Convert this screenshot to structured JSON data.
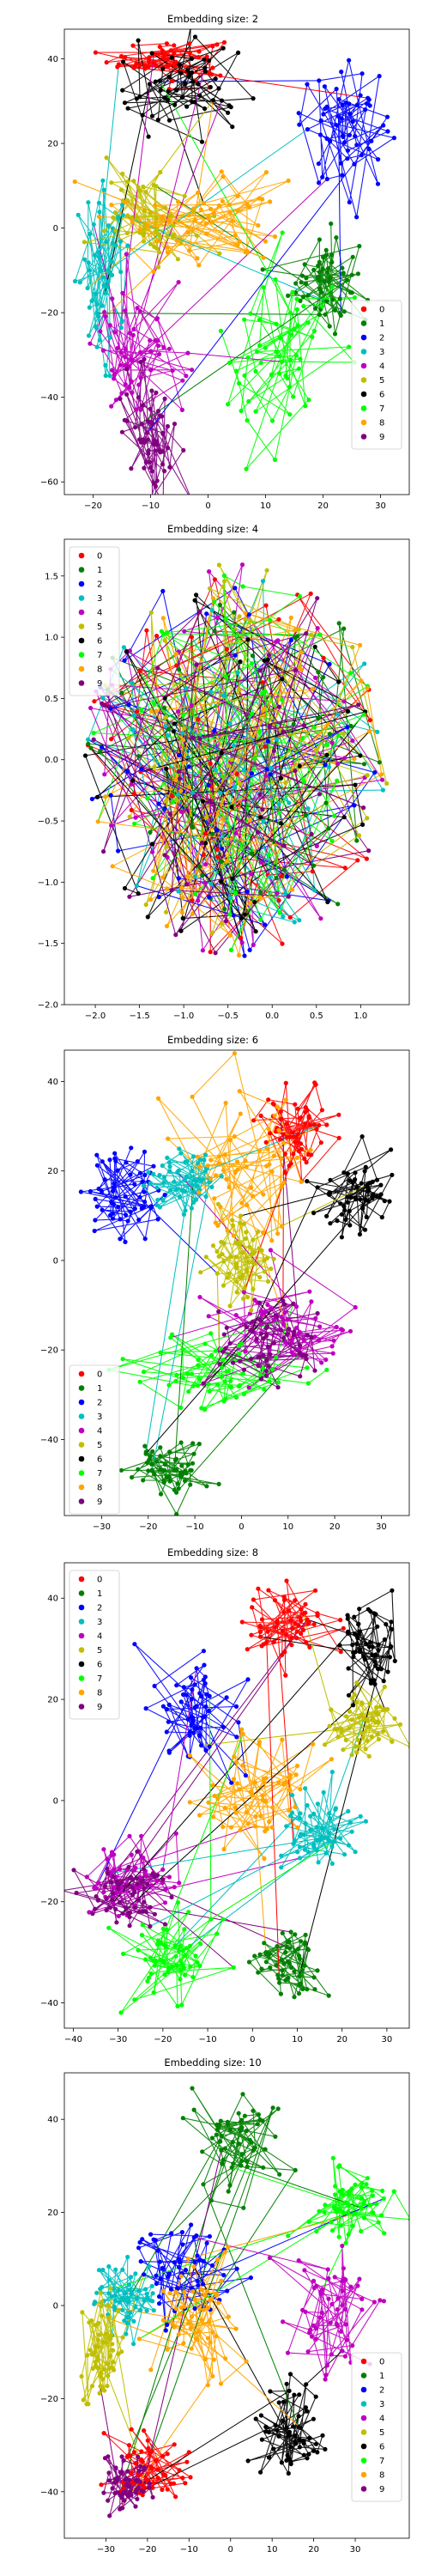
{
  "colors": {
    "0": "#ff0000",
    "1": "#008000",
    "2": "#0000ff",
    "3": "#00bfbf",
    "4": "#bf00bf",
    "5": "#bfbf00",
    "6": "#000000",
    "7": "#00ff00",
    "8": "#ffa500",
    "9": "#800080"
  },
  "legend_labels": [
    "0",
    "1",
    "2",
    "3",
    "4",
    "5",
    "6",
    "7",
    "8",
    "9"
  ],
  "chart_data": [
    {
      "type": "scatter",
      "title": "Embedding size: 2",
      "xlim": [
        -25,
        35
      ],
      "ylim": [
        -63,
        47
      ],
      "xticks": [
        -20,
        -10,
        0,
        10,
        20,
        30
      ],
      "yticks": [
        -60,
        -40,
        -20,
        0,
        20,
        40
      ],
      "legend": "lower-right",
      "clusters": [
        {
          "name": "0",
          "cx": -7,
          "cy": 40,
          "sx": 5,
          "sy": 2.5
        },
        {
          "name": "1",
          "cx": 20,
          "cy": -12,
          "sx": 3,
          "sy": 6
        },
        {
          "name": "2",
          "cx": 24,
          "cy": 24,
          "sx": 4,
          "sy": 7
        },
        {
          "name": "3",
          "cx": -18,
          "cy": -12,
          "sx": 2.5,
          "sy": 10
        },
        {
          "name": "4",
          "cx": -12,
          "cy": -30,
          "sx": 4,
          "sy": 8
        },
        {
          "name": "5",
          "cx": -10,
          "cy": 3,
          "sx": 4,
          "sy": 5
        },
        {
          "name": "6",
          "cx": -5,
          "cy": 32,
          "sx": 6,
          "sy": 6
        },
        {
          "name": "7",
          "cx": 12,
          "cy": -30,
          "sx": 5,
          "sy": 12
        },
        {
          "name": "8",
          "cx": 0,
          "cy": 3,
          "sx": 8,
          "sy": 6
        },
        {
          "name": "9",
          "cx": -10,
          "cy": -48,
          "sx": 2.5,
          "sy": 8
        }
      ]
    },
    {
      "type": "scatter",
      "title": "Embedding size: 4",
      "xlim": [
        -2.35,
        1.55
      ],
      "ylim": [
        -2.0,
        1.8
      ],
      "xticks": [
        -2.0,
        -1.5,
        -1.0,
        -0.5,
        0.0,
        0.5,
        1.0
      ],
      "yticks": [
        -2.0,
        -1.5,
        -1.0,
        -0.5,
        0.0,
        0.5,
        1.0,
        1.5
      ],
      "legend": "upper-left",
      "clusters": [
        {
          "name": "0",
          "cx": -0.4,
          "cy": 0.0,
          "sx": 0.9,
          "sy": 0.85,
          "uniform": true
        },
        {
          "name": "1",
          "cx": -0.4,
          "cy": 0.0,
          "sx": 0.9,
          "sy": 0.85,
          "uniform": true
        },
        {
          "name": "2",
          "cx": -0.4,
          "cy": 0.0,
          "sx": 0.9,
          "sy": 0.85,
          "uniform": true
        },
        {
          "name": "3",
          "cx": -0.4,
          "cy": 0.0,
          "sx": 0.9,
          "sy": 0.85,
          "uniform": true
        },
        {
          "name": "4",
          "cx": -0.4,
          "cy": 0.0,
          "sx": 0.9,
          "sy": 0.85,
          "uniform": true
        },
        {
          "name": "5",
          "cx": -0.4,
          "cy": 0.0,
          "sx": 0.9,
          "sy": 0.85,
          "uniform": true
        },
        {
          "name": "6",
          "cx": -0.4,
          "cy": 0.0,
          "sx": 0.9,
          "sy": 0.85,
          "uniform": true
        },
        {
          "name": "7",
          "cx": -0.4,
          "cy": 0.0,
          "sx": 0.9,
          "sy": 0.85,
          "uniform": true
        },
        {
          "name": "8",
          "cx": -0.4,
          "cy": 0.0,
          "sx": 0.9,
          "sy": 0.85,
          "uniform": true
        },
        {
          "name": "9",
          "cx": -0.4,
          "cy": 0.0,
          "sx": 0.9,
          "sy": 0.85,
          "uniform": true
        }
      ]
    },
    {
      "type": "scatter",
      "title": "Embedding size: 6",
      "xlim": [
        -38,
        36
      ],
      "ylim": [
        -57,
        47
      ],
      "xticks": [
        -30,
        -20,
        -10,
        0,
        10,
        20,
        30
      ],
      "yticks": [
        -40,
        -20,
        0,
        20,
        40
      ],
      "legend": "lower-left",
      "clusters": [
        {
          "name": "0",
          "cx": 12,
          "cy": 30,
          "sx": 4,
          "sy": 5
        },
        {
          "name": "1",
          "cx": -15,
          "cy": -47,
          "sx": 4,
          "sy": 3
        },
        {
          "name": "2",
          "cx": -25,
          "cy": 15,
          "sx": 5,
          "sy": 5
        },
        {
          "name": "3",
          "cx": -12,
          "cy": 18,
          "sx": 4,
          "sy": 4
        },
        {
          "name": "4",
          "cx": 10,
          "cy": -15,
          "sx": 7,
          "sy": 5
        },
        {
          "name": "5",
          "cx": 0,
          "cy": 0,
          "sx": 4,
          "sy": 5
        },
        {
          "name": "6",
          "cx": 25,
          "cy": 15,
          "sx": 4,
          "sy": 4
        },
        {
          "name": "7",
          "cx": -5,
          "cy": -25,
          "sx": 8,
          "sy": 4
        },
        {
          "name": "8",
          "cx": 0,
          "cy": 20,
          "sx": 7,
          "sy": 8
        },
        {
          "name": "9",
          "cx": 5,
          "cy": -18,
          "sx": 6,
          "sy": 5
        }
      ]
    },
    {
      "type": "scatter",
      "title": "Embedding size: 8",
      "xlim": [
        -42,
        35
      ],
      "ylim": [
        -45,
        47
      ],
      "xticks": [
        -40,
        -30,
        -20,
        -10,
        0,
        10,
        20,
        30
      ],
      "yticks": [
        -40,
        -20,
        0,
        20,
        40
      ],
      "legend": "upper-left",
      "clusters": [
        {
          "name": "0",
          "cx": 8,
          "cy": 35,
          "sx": 5,
          "sy": 4
        },
        {
          "name": "1",
          "cx": 8,
          "cy": -33,
          "sx": 4,
          "sy": 4
        },
        {
          "name": "2",
          "cx": -12,
          "cy": 18,
          "sx": 5,
          "sy": 6
        },
        {
          "name": "3",
          "cx": 15,
          "cy": -5,
          "sx": 5,
          "sy": 4
        },
        {
          "name": "4",
          "cx": -28,
          "cy": -15,
          "sx": 6,
          "sy": 4
        },
        {
          "name": "5",
          "cx": 25,
          "cy": 15,
          "sx": 4,
          "sy": 4
        },
        {
          "name": "6",
          "cx": 25,
          "cy": 30,
          "sx": 3,
          "sy": 5
        },
        {
          "name": "7",
          "cx": -18,
          "cy": -30,
          "sx": 6,
          "sy": 5
        },
        {
          "name": "8",
          "cx": 0,
          "cy": 0,
          "sx": 7,
          "sy": 6
        },
        {
          "name": "9",
          "cx": -28,
          "cy": -18,
          "sx": 5,
          "sy": 3
        }
      ]
    },
    {
      "type": "scatter",
      "title": "Embedding size: 10",
      "xlim": [
        -40,
        43
      ],
      "ylim": [
        -50,
        50
      ],
      "xticks": [
        -30,
        -20,
        -10,
        0,
        10,
        20,
        30
      ],
      "yticks": [
        -40,
        -20,
        0,
        20,
        40
      ],
      "legend": "lower-right",
      "clusters": [
        {
          "name": "0",
          "cx": -20,
          "cy": -35,
          "sx": 5,
          "sy": 4
        },
        {
          "name": "1",
          "cx": 2,
          "cy": 35,
          "sx": 5,
          "sy": 5
        },
        {
          "name": "2",
          "cx": -12,
          "cy": 8,
          "sx": 5,
          "sy": 5
        },
        {
          "name": "3",
          "cx": -25,
          "cy": 2,
          "sx": 4,
          "sy": 4
        },
        {
          "name": "4",
          "cx": 25,
          "cy": 0,
          "sx": 5,
          "sy": 7
        },
        {
          "name": "5",
          "cx": -32,
          "cy": -10,
          "sx": 3,
          "sy": 6
        },
        {
          "name": "6",
          "cx": 15,
          "cy": -27,
          "sx": 4,
          "sy": 5
        },
        {
          "name": "7",
          "cx": 28,
          "cy": 22,
          "sx": 5,
          "sy": 4
        },
        {
          "name": "8",
          "cx": -8,
          "cy": -3,
          "sx": 5,
          "sy": 7
        },
        {
          "name": "9",
          "cx": -25,
          "cy": -38,
          "sx": 3,
          "sy": 3
        }
      ]
    }
  ]
}
